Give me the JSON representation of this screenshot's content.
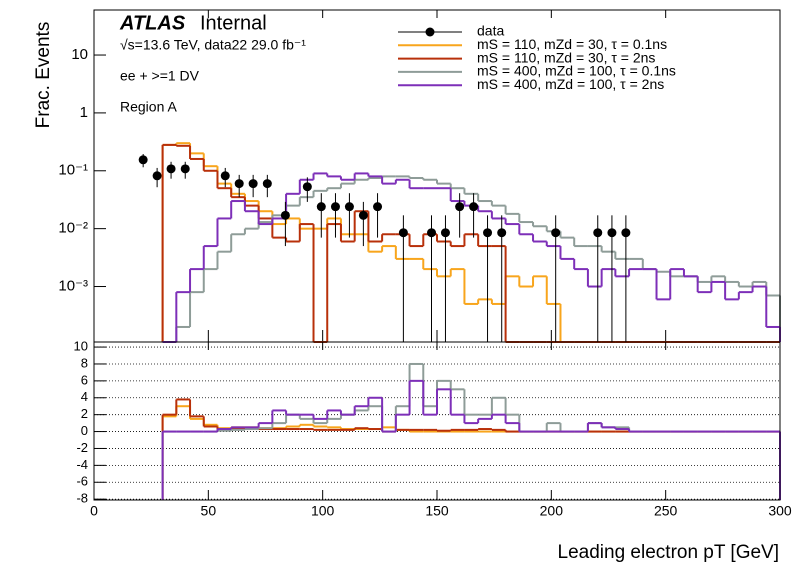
{
  "chart_data": [
    {
      "type": "histogram",
      "annotations": [
        "ATLAS",
        "Internal",
        "√s=13.6 TeV, data22 29.0 fb⁻¹",
        "ee + >=1 DV",
        "Region A"
      ],
      "ylabel": "Frac. Events",
      "log_y": true,
      "xlim": [
        0,
        300
      ],
      "xticks": [
        0,
        50,
        100,
        150,
        200,
        250,
        300
      ],
      "ylim": [
        0.00011,
        60
      ],
      "yticks": [
        10,
        1,
        {
          "value": 0.1,
          "label": "10⁻¹"
        },
        {
          "value": 0.01,
          "label": "10⁻²"
        },
        {
          "value": 0.001,
          "label": "10⁻³"
        }
      ],
      "bins": [
        30,
        36,
        42,
        48,
        54,
        60,
        66,
        72,
        78,
        84,
        90,
        96,
        102,
        108,
        114,
        120,
        126,
        132,
        138,
        144,
        150,
        156,
        162,
        168,
        174,
        180,
        186,
        192,
        198,
        204,
        210,
        216,
        222,
        228,
        234,
        240,
        246,
        252,
        258,
        264,
        270,
        276,
        282,
        288,
        294,
        300
      ],
      "data": {
        "name": "data",
        "color": "#000000",
        "x": [
          21.5,
          27.6,
          33.7,
          39.9,
          57.4,
          63.5,
          69.6,
          75.8,
          83.7,
          93.3,
          99.4,
          105.6,
          111.7,
          117.8,
          124,
          135.3,
          147.6,
          153.7,
          159.9,
          166,
          172.1,
          178.3,
          201.9,
          220.3,
          226.5,
          232.6
        ],
        "values": [
          0.155,
          0.082,
          0.108,
          0.108,
          0.082,
          0.06,
          0.06,
          0.06,
          0.017,
          0.053,
          0.024,
          0.024,
          0.024,
          0.017,
          0.024,
          0.0085,
          0.0085,
          0.0085,
          0.024,
          0.024,
          0.0085,
          0.0085,
          0.0085,
          0.0085,
          0.0085,
          0.0085
        ],
        "errors": [
          0.04,
          0.03,
          0.035,
          0.035,
          0.03,
          0.025,
          0.025,
          0.025,
          0.012,
          0.024,
          0.017,
          0.017,
          0.017,
          0.012,
          0.017,
          0.0085,
          0.0085,
          0.0085,
          0.017,
          0.017,
          0.0085,
          0.0085,
          0.0085,
          0.0085,
          0.0085,
          0.0085
        ]
      },
      "series": [
        {
          "name": "mS = 110, mZd = 30, τ = 0.1ns",
          "color": "#f8a51c",
          "values": [
            0.28,
            0.3,
            0.2,
            0.12,
            0.06,
            0.04,
            0.03,
            0.02,
            0.012,
            0.015,
            0.01,
            0.01,
            0.015,
            0.008,
            0.008,
            0.004,
            0.005,
            0.003,
            0.003,
            0.002,
            0.0015,
            0.002,
            0.0005,
            0.0006,
            0.0005,
            0.0015,
            0.001,
            0.0015,
            0.0005,
            null,
            null,
            null,
            null,
            null,
            null,
            null,
            null,
            null,
            null,
            null,
            null,
            null,
            null,
            null,
            null
          ]
        },
        {
          "name": "mS = 110, mZd = 30, τ = 2ns",
          "color": "#b8300a",
          "values": [
            0.28,
            0.27,
            0.16,
            0.1,
            0.05,
            0.035,
            0.025,
            0.015,
            0.007,
            0.006,
            0.012,
            null,
            0.012,
            0.006,
            0.02,
            0.006,
            0.008,
            0.008,
            0.005,
            0.008,
            0.006,
            0.005,
            0.008,
            0.005,
            0.005,
            null,
            null,
            null,
            null,
            null,
            null,
            null,
            null,
            null,
            null,
            null,
            null,
            null,
            null,
            null,
            null,
            null,
            null,
            null,
            null
          ]
        },
        {
          "name": "mS = 400, mZd = 100, τ = 0.1ns",
          "color": "#8e9c98",
          "values": [
            null,
            0.0002,
            0.0008,
            0.002,
            0.004,
            0.008,
            0.01,
            0.013,
            0.017,
            0.025,
            0.035,
            0.045,
            0.05,
            0.06,
            0.07,
            0.075,
            0.08,
            0.08,
            0.075,
            0.07,
            0.06,
            0.05,
            0.04,
            0.03,
            0.025,
            0.018,
            0.013,
            0.011,
            0.009,
            0.007,
            0.005,
            0.005,
            0.004,
            0.003,
            0.003,
            0.002,
            0.0018,
            0.0015,
            0.0015,
            0.0012,
            0.0015,
            0.0012,
            0.001,
            0.0012,
            0.0007
          ]
        },
        {
          "name": "mS = 400, mZd = 100, τ = 2ns",
          "color": "#7d2fb8",
          "values": [
            null,
            0.0008,
            0.002,
            0.005,
            0.015,
            0.03,
            0.02,
            0.012,
            0.015,
            0.04,
            0.07,
            0.09,
            0.08,
            0.07,
            0.09,
            0.08,
            0.06,
            0.07,
            0.05,
            0.05,
            0.05,
            0.03,
            0.025,
            0.02,
            0.015,
            0.012,
            0.008,
            0.006,
            0.005,
            0.003,
            0.002,
            0.001,
            0.002,
            0.0015,
            0.002,
            0.002,
            0.0006,
            0.002,
            0.0015,
            0.0008,
            0.0012,
            0.0006,
            0.0008,
            0.001,
            0.0002
          ]
        }
      ]
    },
    {
      "type": "histogram",
      "xlabel": "Leading electron pT [GeV]",
      "log_y": false,
      "grid": true,
      "xlim": [
        0,
        300
      ],
      "xticks": [
        0,
        50,
        100,
        150,
        200,
        250,
        300
      ],
      "ylim": [
        -8.1,
        10.6
      ],
      "yticks": [
        10,
        8,
        6,
        4,
        2,
        0,
        -2,
        -4,
        -6,
        -8
      ],
      "bins": [
        30,
        36,
        42,
        48,
        54,
        60,
        66,
        72,
        78,
        84,
        90,
        96,
        102,
        108,
        114,
        120,
        126,
        132,
        138,
        144,
        150,
        156,
        162,
        168,
        174,
        180,
        186,
        192,
        198,
        204,
        210,
        216,
        222,
        228,
        234,
        240,
        246,
        252,
        258,
        264,
        270,
        276,
        282,
        288,
        294,
        300
      ],
      "series": [
        {
          "color": "#f8a51c",
          "values": [
            1.8,
            3,
            1.5,
            0.8,
            0.4,
            0.5,
            0.5,
            0.4,
            0.4,
            0.6,
            0.8,
            0.6,
            0.5,
            0.3,
            0.3,
            0.3,
            0.5,
            0.2,
            0,
            0,
            0,
            0,
            0,
            0,
            0,
            0,
            0,
            0,
            0,
            0,
            0,
            0,
            0,
            0,
            0,
            0,
            0,
            0,
            0,
            0,
            0,
            0,
            0,
            0,
            0
          ]
        },
        {
          "color": "#b8300a",
          "values": [
            2,
            3.8,
            1.8,
            0.6,
            0.3,
            0.4,
            0.3,
            0.3,
            0.3,
            0.3,
            0.3,
            0.2,
            0.2,
            0.2,
            0.4,
            0.3,
            0,
            0.2,
            0.2,
            0.2,
            0.1,
            0.2,
            0.2,
            0.3,
            0.2,
            0,
            0,
            0,
            0,
            0,
            0,
            0,
            0,
            0,
            0,
            0,
            0,
            0,
            0,
            0,
            0,
            0,
            0,
            0,
            0
          ]
        },
        {
          "color": "#8e9c98",
          "values": [
            0,
            0,
            0,
            0,
            0.1,
            0.2,
            0.3,
            0.4,
            1,
            2,
            1.5,
            1,
            1.5,
            2,
            2.5,
            3,
            0,
            3,
            8,
            3,
            6,
            5,
            2,
            2,
            4,
            2,
            0,
            0,
            1,
            0,
            0,
            1,
            0.5,
            0.5,
            0,
            0,
            0,
            0,
            0,
            0,
            0,
            0,
            0,
            0,
            0
          ]
        },
        {
          "color": "#7d2fb8",
          "values": [
            0,
            0,
            0,
            0,
            0.3,
            0.5,
            0.5,
            1,
            2.5,
            2,
            2,
            1.5,
            2.5,
            2,
            3,
            4,
            0,
            2,
            6,
            2,
            5,
            2,
            1,
            1.5,
            2,
            1,
            0,
            0,
            0,
            0,
            0,
            1,
            0.5,
            0.3,
            0,
            0,
            0,
            0,
            0,
            0,
            0,
            0,
            0,
            0,
            0
          ]
        }
      ]
    }
  ]
}
